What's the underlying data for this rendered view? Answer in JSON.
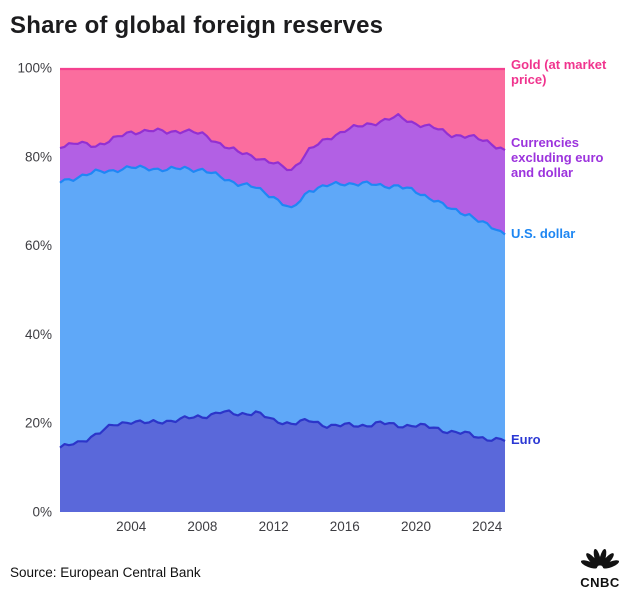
{
  "title": "Share of global foreign reserves",
  "source": "Source: European Central Bank",
  "logo": {
    "text": "CNBC",
    "icon": "cnbc-peacock-icon"
  },
  "labels": {
    "gold": [
      "Gold (at market",
      "price)"
    ],
    "currencies": [
      "Currencies",
      "excluding euro",
      "and dollar"
    ],
    "usd": "U.S. dollar",
    "euro": "Euro"
  },
  "colors": {
    "axis_text": "#3d3d42",
    "title_text": "#1c1c1e",
    "background": "#ffffff"
  },
  "chart_data": {
    "type": "area",
    "stacked": true,
    "title": "Share of global foreign reserves",
    "xlabel": "",
    "ylabel": "",
    "ylim": [
      0,
      100
    ],
    "grid": false,
    "legend_position": "right-inline",
    "x": [
      2000,
      2001,
      2002,
      2003,
      2004,
      2005,
      2006,
      2007,
      2008,
      2009,
      2010,
      2011,
      2012,
      2013,
      2014,
      2015,
      2016,
      2017,
      2018,
      2019,
      2020,
      2021,
      2022,
      2023,
      2024,
      2025
    ],
    "xticks": [
      2004,
      2008,
      2012,
      2016,
      2020,
      2024
    ],
    "yticks": [
      "0%",
      "20%",
      "40%",
      "60%",
      "80%",
      "100%"
    ],
    "ytick_values": [
      0,
      20,
      40,
      60,
      80,
      100
    ],
    "series": [
      {
        "name": "Euro",
        "fill": "#5a68da",
        "line": "#2c35c9",
        "label_color": "#2b38d4",
        "values": [
          14.5,
          15.5,
          17.5,
          19.5,
          20.5,
          20.0,
          20.5,
          21.0,
          21.5,
          22.5,
          22.0,
          22.5,
          20.5,
          20.0,
          20.5,
          19.5,
          19.5,
          19.5,
          20.0,
          19.5,
          19.5,
          19.0,
          18.0,
          17.5,
          16.5,
          16.0
        ]
      },
      {
        "name": "U.S. dollar",
        "fill": "#5fa8f8",
        "line": "#1f87f5",
        "label_color": "#1d86f2",
        "values": [
          59.8,
          60.0,
          59.0,
          57.5,
          57.0,
          57.5,
          56.5,
          56.5,
          55.5,
          53.0,
          52.0,
          50.5,
          50.5,
          48.0,
          52.0,
          54.0,
          54.5,
          54.5,
          53.5,
          54.0,
          52.5,
          51.5,
          50.0,
          49.5,
          48.0,
          46.5
        ]
      },
      {
        "name": "Currencies excluding euro and dollar",
        "fill": "#b260e4",
        "line": "#9330d2",
        "label_color": "#9c33dd",
        "values": [
          8.2,
          7.5,
          6.0,
          7.0,
          8.0,
          8.5,
          8.5,
          8.5,
          8.0,
          7.5,
          7.0,
          7.0,
          7.5,
          9.0,
          9.0,
          10.5,
          12.0,
          13.0,
          14.5,
          15.5,
          15.5,
          16.0,
          17.0,
          17.5,
          19.0,
          19.0
        ]
      },
      {
        "name": "Gold (at market price)",
        "fill": "#fb6d9e",
        "line": "#f4418f",
        "label_color": "#f0348e",
        "values": [
          17.5,
          17.0,
          17.5,
          16.0,
          14.5,
          14.0,
          14.5,
          14.0,
          15.0,
          17.0,
          19.0,
          20.0,
          21.5,
          23.0,
          18.5,
          16.0,
          14.0,
          13.0,
          12.0,
          11.0,
          12.5,
          13.5,
          15.0,
          15.5,
          16.5,
          18.5
        ]
      }
    ]
  }
}
